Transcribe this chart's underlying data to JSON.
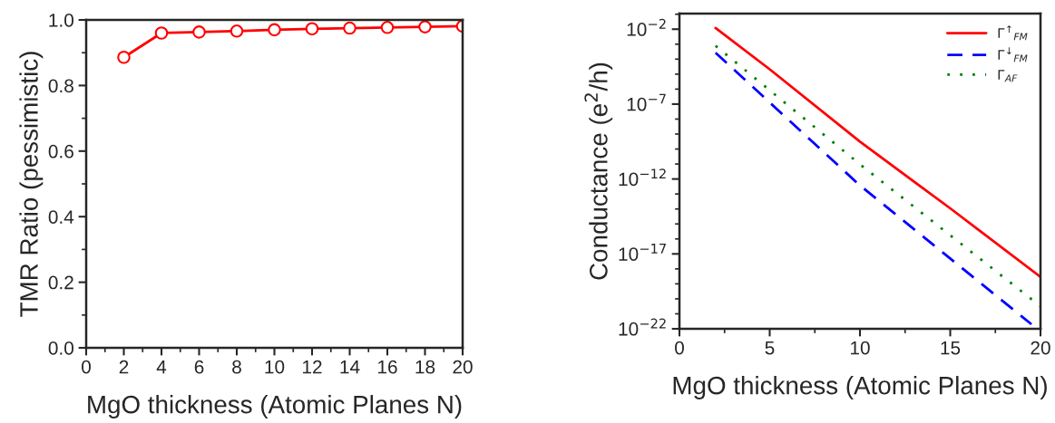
{
  "chart_data": [
    {
      "type": "line",
      "xlabel": "MgO thickness (Atomic Planes N)",
      "ylabel": "TMR Ratio (pessimistic)",
      "x": [
        2,
        4,
        6,
        8,
        10,
        12,
        14,
        16,
        18,
        20
      ],
      "xlim": [
        0,
        20
      ],
      "xticks": [
        0,
        2,
        4,
        6,
        8,
        10,
        12,
        14,
        16,
        18,
        20
      ],
      "ylim": [
        0,
        1
      ],
      "yticks": [
        {
          "value": 0,
          "label": "0.0"
        },
        0.2,
        0.4,
        0.6,
        0.8,
        {
          "value": 1,
          "label": "1.0"
        }
      ],
      "marker": "circle",
      "line_style": "solid",
      "grid": false,
      "legend": false,
      "series": [
        {
          "color": "#ff0000",
          "values": [
            0.886,
            0.96,
            0.963,
            0.966,
            0.97,
            0.973,
            0.975,
            0.977,
            0.979,
            0.981
          ]
        }
      ]
    },
    {
      "type": "line",
      "xlabel": "MgO thickness (Atomic Planes N)",
      "ylabel": "Conductance (e$^{2}$/h)",
      "log": "y",
      "xlim": [
        0,
        20
      ],
      "xticks": [
        0,
        5,
        10,
        15,
        20
      ],
      "ylim": [
        1e-22,
        0.11
      ],
      "yticks": [
        {
          "value": 0.01,
          "label": "10$^{−2}$"
        },
        {
          "value": 1e-07,
          "label": "10$^{−7}$"
        },
        {
          "value": 1e-12,
          "label": "10$^{−12}$"
        },
        {
          "value": 1e-17,
          "label": "10$^{−17}$"
        },
        {
          "value": 1e-22,
          "label": "10$^{−22}$"
        }
      ],
      "grid": false,
      "legend": "top right",
      "marker": "none",
      "series": [
        {
          "name": "Γ$^{↑}$$_{FM}$",
          "color": "#ff0000",
          "line_style": "solid",
          "x": [
            2,
            5,
            10,
            15,
            20
          ],
          "values": [
            0.012,
            2.1e-05,
            3.1e-10,
            1.1e-14,
            2.9e-19
          ]
        },
        {
          "name": "Γ$^{↓}$$_{FM}$",
          "color": "#0000ff",
          "line_style": "dashed",
          "x": [
            2,
            10,
            19.5
          ],
          "values": [
            0.00027,
            3.7e-13,
            2e-22
          ]
        },
        {
          "name": "Γ$_{AF}$",
          "color": "#008000",
          "line_style": "dotted",
          "x": [
            2,
            10,
            20
          ],
          "values": [
            0.00078,
            9.5e-12,
            3.2e-21
          ]
        }
      ]
    }
  ]
}
